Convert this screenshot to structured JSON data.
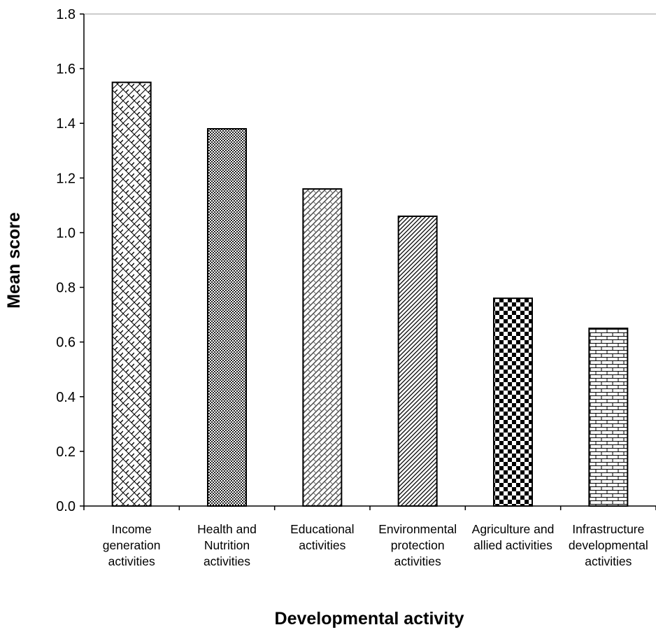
{
  "chart_data": {
    "type": "bar",
    "categories": [
      [
        "Income",
        "generation",
        "activities"
      ],
      [
        "Health and",
        "Nutrition",
        "activities"
      ],
      [
        "Educational",
        "activities"
      ],
      [
        "Environmental",
        "protection",
        "activities"
      ],
      [
        "Agriculture and",
        "allied activities"
      ],
      [
        "Infrastructure",
        "developmental",
        "activities"
      ]
    ],
    "values": [
      1.55,
      1.38,
      1.16,
      1.06,
      0.76,
      0.65
    ],
    "patterns": [
      "lattice",
      "fine-check",
      "weave",
      "diagonal",
      "checkerboard",
      "brick"
    ],
    "xlabel": "Developmental activity",
    "ylabel": "Mean score",
    "ylim": [
      0,
      1.8
    ],
    "yticks": [
      "0.0",
      "0.2",
      "0.4",
      "0.6",
      "0.8",
      "1.0",
      "1.2",
      "1.4",
      "1.6",
      "1.8"
    ],
    "grid": false,
    "legend": "none"
  }
}
